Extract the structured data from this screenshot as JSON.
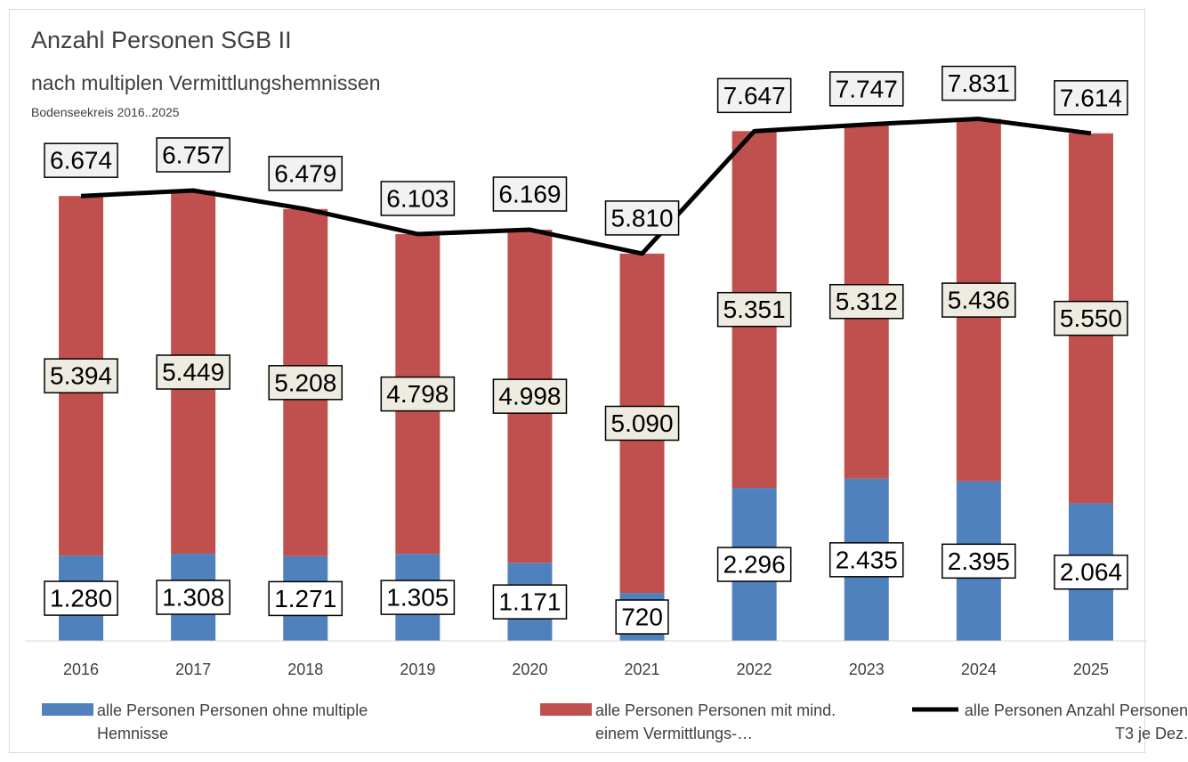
{
  "chart_data": {
    "type": "bar",
    "stacked": true,
    "title": "Anzahl Personen SGB II",
    "subtitle": "nach multiplen Vermittlungshemnissen",
    "caption": "Bodenseekreis 2016..2025",
    "categories": [
      "2016",
      "2017",
      "2018",
      "2019",
      "2020",
      "2021",
      "2022",
      "2023",
      "2024",
      "2025"
    ],
    "ylim": [
      0,
      9000
    ],
    "series": [
      {
        "name": "alle Personen Personen ohne multiple Hemnisse",
        "type": "bar",
        "color": "#4f81bd",
        "values": [
          1280,
          1308,
          1271,
          1305,
          1171,
          720,
          2296,
          2435,
          2395,
          2064
        ],
        "value_labels": [
          "1.280",
          "1.308",
          "1.271",
          "1.305",
          "1.171",
          "720",
          "2.296",
          "2.435",
          "2.395",
          "2.064"
        ]
      },
      {
        "name": "alle Personen Personen mit mind. einem Vermittlungs-…",
        "type": "bar",
        "color": "#c0504d",
        "values": [
          5394,
          5449,
          5208,
          4798,
          4998,
          5090,
          5351,
          5312,
          5436,
          5550
        ],
        "value_labels": [
          "5.394",
          "5.449",
          "5.208",
          "4.798",
          "4.998",
          "5.090",
          "5.351",
          "5.312",
          "5.436",
          "5.550"
        ]
      },
      {
        "name": "alle Personen Anzahl Personen T3 je Dez.",
        "type": "line",
        "color": "#000000",
        "values": [
          6674,
          6757,
          6479,
          6103,
          6169,
          5810,
          7647,
          7747,
          7831,
          7614
        ],
        "value_labels": [
          "6.674",
          "6.757",
          "6.479",
          "6.103",
          "6.169",
          "5.810",
          "7.647",
          "7.747",
          "7.831",
          "7.614"
        ]
      }
    ]
  }
}
